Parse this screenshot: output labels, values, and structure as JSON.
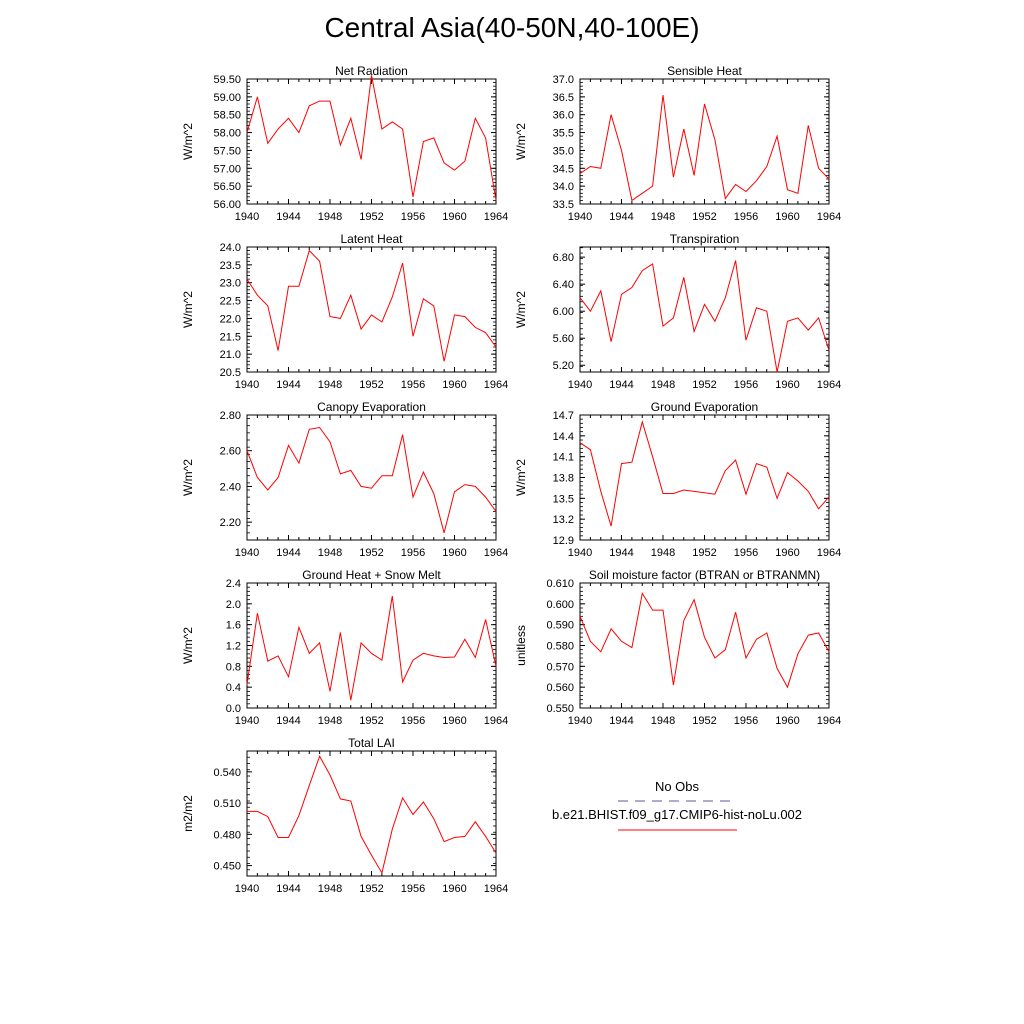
{
  "title": "Central Asia(40-50N,40-100E)",
  "colors": {
    "series": "#ff0000",
    "obs": "#5a5aa0",
    "axis": "#000000"
  },
  "legend": {
    "obs_label": "No Obs",
    "case_label": "b.e21.BHIST.f09_g17.CMIP6-hist-noLu.002"
  },
  "chart_data": [
    {
      "type": "line",
      "title": "Net Radiation",
      "xlabel": "",
      "ylabel": "W/m^2",
      "xlim": [
        1940,
        1964
      ],
      "ylim": [
        56.0,
        59.5
      ],
      "xticks": [
        "1940",
        "1944",
        "1948",
        "1952",
        "1956",
        "1960",
        "1964"
      ],
      "yticks": [
        "56.00",
        "56.50",
        "57.00",
        "57.50",
        "58.00",
        "58.50",
        "59.00",
        "59.50"
      ],
      "x": [
        1940,
        1941,
        1942,
        1943,
        1944,
        1945,
        1946,
        1947,
        1948,
        1949,
        1950,
        1951,
        1952,
        1953,
        1954,
        1955,
        1956,
        1957,
        1958,
        1959,
        1960,
        1961,
        1962,
        1963,
        1964
      ],
      "series": [
        {
          "values": [
            58.0,
            59.0,
            57.7,
            58.1,
            58.4,
            58.0,
            58.75,
            58.88,
            58.88,
            57.65,
            58.4,
            57.25,
            59.6,
            58.1,
            58.3,
            58.1,
            56.2,
            57.75,
            57.85,
            57.15,
            56.95,
            57.2,
            58.4,
            57.85,
            56.1
          ]
        }
      ]
    },
    {
      "type": "line",
      "title": "Sensible Heat",
      "xlabel": "",
      "ylabel": "W/m^2",
      "xlim": [
        1940,
        1964
      ],
      "ylim": [
        33.5,
        37.0
      ],
      "xticks": [
        "1940",
        "1944",
        "1948",
        "1952",
        "1956",
        "1960",
        "1964"
      ],
      "yticks": [
        "33.5",
        "34.0",
        "34.5",
        "35.0",
        "35.5",
        "36.0",
        "36.5",
        "37.0"
      ],
      "x": [
        1940,
        1941,
        1942,
        1943,
        1944,
        1945,
        1946,
        1947,
        1948,
        1949,
        1950,
        1951,
        1952,
        1953,
        1954,
        1955,
        1956,
        1957,
        1958,
        1959,
        1960,
        1961,
        1962,
        1963,
        1964
      ],
      "series": [
        {
          "values": [
            34.35,
            34.55,
            34.5,
            36.0,
            35.0,
            33.6,
            33.8,
            34.0,
            36.55,
            34.25,
            35.6,
            34.3,
            36.3,
            35.3,
            33.65,
            34.05,
            33.85,
            34.15,
            34.55,
            35.4,
            33.9,
            33.8,
            35.7,
            34.5,
            34.2
          ]
        }
      ]
    },
    {
      "type": "line",
      "title": "Latent Heat",
      "xlabel": "",
      "ylabel": "W/m^2",
      "xlim": [
        1940,
        1964
      ],
      "ylim": [
        20.5,
        24.0
      ],
      "xticks": [
        "1940",
        "1944",
        "1948",
        "1952",
        "1956",
        "1960",
        "1964"
      ],
      "yticks": [
        "20.5",
        "21.0",
        "21.5",
        "22.0",
        "22.5",
        "23.0",
        "23.5",
        "24.0"
      ],
      "x": [
        1940,
        1941,
        1942,
        1943,
        1944,
        1945,
        1946,
        1947,
        1948,
        1949,
        1950,
        1951,
        1952,
        1953,
        1954,
        1955,
        1956,
        1957,
        1958,
        1959,
        1960,
        1961,
        1962,
        1963,
        1964
      ],
      "series": [
        {
          "values": [
            23.1,
            22.65,
            22.35,
            21.1,
            22.9,
            22.9,
            23.9,
            23.6,
            22.05,
            22.0,
            22.65,
            21.7,
            22.1,
            21.9,
            22.6,
            23.55,
            21.5,
            22.55,
            22.35,
            20.8,
            22.1,
            22.05,
            21.75,
            21.6,
            21.2
          ]
        }
      ]
    },
    {
      "type": "line",
      "title": "Transpiration",
      "xlabel": "",
      "ylabel": "W/m^2",
      "xlim": [
        1940,
        1964
      ],
      "ylim": [
        5.1,
        6.95
      ],
      "xticks": [
        "1940",
        "1944",
        "1948",
        "1952",
        "1956",
        "1960",
        "1964"
      ],
      "yticks": [
        "5.20",
        "5.60",
        "6.00",
        "6.40",
        "6.80"
      ],
      "x": [
        1940,
        1941,
        1942,
        1943,
        1944,
        1945,
        1946,
        1947,
        1948,
        1949,
        1950,
        1951,
        1952,
        1953,
        1954,
        1955,
        1956,
        1957,
        1958,
        1959,
        1960,
        1961,
        1962,
        1963,
        1964
      ],
      "series": [
        {
          "values": [
            6.2,
            6.0,
            6.3,
            5.55,
            6.25,
            6.35,
            6.6,
            6.7,
            5.78,
            5.9,
            6.5,
            5.7,
            6.1,
            5.85,
            6.2,
            6.75,
            5.57,
            6.05,
            6.0,
            5.1,
            5.85,
            5.9,
            5.72,
            5.9,
            5.42
          ]
        }
      ]
    },
    {
      "type": "line",
      "title": "Canopy Evaporation",
      "xlabel": "",
      "ylabel": "W/m^2",
      "xlim": [
        1940,
        1964
      ],
      "ylim": [
        2.1,
        2.8
      ],
      "xticks": [
        "1940",
        "1944",
        "1948",
        "1952",
        "1956",
        "1960",
        "1964"
      ],
      "yticks": [
        "2.20",
        "2.40",
        "2.60",
        "2.80"
      ],
      "x": [
        1940,
        1941,
        1942,
        1943,
        1944,
        1945,
        1946,
        1947,
        1948,
        1949,
        1950,
        1951,
        1952,
        1953,
        1954,
        1955,
        1956,
        1957,
        1958,
        1959,
        1960,
        1961,
        1962,
        1963,
        1964
      ],
      "series": [
        {
          "values": [
            2.6,
            2.45,
            2.38,
            2.45,
            2.63,
            2.53,
            2.72,
            2.73,
            2.65,
            2.47,
            2.49,
            2.4,
            2.39,
            2.46,
            2.46,
            2.69,
            2.34,
            2.48,
            2.36,
            2.14,
            2.37,
            2.41,
            2.4,
            2.34,
            2.26
          ]
        }
      ]
    },
    {
      "type": "line",
      "title": "Ground Evaporation",
      "xlabel": "",
      "ylabel": "W/m^2",
      "xlim": [
        1940,
        1964
      ],
      "ylim": [
        12.9,
        14.7
      ],
      "xticks": [
        "1940",
        "1944",
        "1948",
        "1952",
        "1956",
        "1960",
        "1964"
      ],
      "yticks": [
        "12.9",
        "13.2",
        "13.5",
        "13.8",
        "14.1",
        "14.4",
        "14.7"
      ],
      "x": [
        1940,
        1941,
        1942,
        1943,
        1944,
        1945,
        1946,
        1947,
        1948,
        1949,
        1950,
        1951,
        1952,
        1953,
        1954,
        1955,
        1956,
        1957,
        1958,
        1959,
        1960,
        1961,
        1962,
        1963,
        1964
      ],
      "series": [
        {
          "values": [
            14.3,
            14.2,
            13.6,
            13.1,
            14.0,
            14.02,
            14.6,
            14.1,
            13.57,
            13.57,
            13.62,
            13.6,
            13.58,
            13.56,
            13.9,
            14.05,
            13.56,
            14.0,
            13.95,
            13.5,
            13.87,
            13.75,
            13.6,
            13.35,
            13.52
          ]
        }
      ]
    },
    {
      "type": "line",
      "title": "Ground Heat + Snow Melt",
      "xlabel": "",
      "ylabel": "W/m^2",
      "xlim": [
        1940,
        1964
      ],
      "ylim": [
        0.0,
        2.4
      ],
      "xticks": [
        "1940",
        "1944",
        "1948",
        "1952",
        "1956",
        "1960",
        "1964"
      ],
      "yticks": [
        "0.0",
        "0.4",
        "0.8",
        "1.2",
        "1.6",
        "2.0",
        "2.4"
      ],
      "x": [
        1940,
        1941,
        1942,
        1943,
        1944,
        1945,
        1946,
        1947,
        1948,
        1949,
        1950,
        1951,
        1952,
        1953,
        1954,
        1955,
        1956,
        1957,
        1958,
        1959,
        1960,
        1961,
        1962,
        1963,
        1964
      ],
      "series": [
        {
          "values": [
            0.45,
            1.82,
            0.9,
            1.0,
            0.6,
            1.55,
            1.05,
            1.25,
            0.32,
            1.45,
            0.15,
            1.25,
            1.05,
            0.92,
            2.15,
            0.5,
            0.92,
            1.05,
            1.0,
            0.97,
            0.98,
            1.32,
            0.97,
            1.7,
            0.8
          ]
        }
      ]
    },
    {
      "type": "line",
      "title": "Soil moisture factor (BTRAN or BTRANMN)",
      "xlabel": "",
      "ylabel": "unitless",
      "xlim": [
        1940,
        1964
      ],
      "ylim": [
        0.55,
        0.61
      ],
      "xticks": [
        "1940",
        "1944",
        "1948",
        "1952",
        "1956",
        "1960",
        "1964"
      ],
      "yticks": [
        "0.550",
        "0.560",
        "0.570",
        "0.580",
        "0.590",
        "0.600",
        "0.610"
      ],
      "x": [
        1940,
        1941,
        1942,
        1943,
        1944,
        1945,
        1946,
        1947,
        1948,
        1949,
        1950,
        1951,
        1952,
        1953,
        1954,
        1955,
        1956,
        1957,
        1958,
        1959,
        1960,
        1961,
        1962,
        1963,
        1964
      ],
      "series": [
        {
          "values": [
            0.594,
            0.582,
            0.577,
            0.588,
            0.582,
            0.579,
            0.605,
            0.597,
            0.597,
            0.561,
            0.592,
            0.602,
            0.584,
            0.574,
            0.578,
            0.596,
            0.574,
            0.583,
            0.586,
            0.569,
            0.56,
            0.576,
            0.585,
            0.586,
            0.577
          ]
        }
      ]
    },
    {
      "type": "line",
      "title": "Total LAI",
      "xlabel": "",
      "ylabel": "m2/m2",
      "xlim": [
        1940,
        1964
      ],
      "ylim": [
        0.44,
        0.56
      ],
      "xticks": [
        "1940",
        "1944",
        "1948",
        "1952",
        "1956",
        "1960",
        "1964"
      ],
      "yticks": [
        "0.450",
        "0.480",
        "0.510",
        "0.540"
      ],
      "x": [
        1940,
        1941,
        1942,
        1943,
        1944,
        1945,
        1946,
        1947,
        1948,
        1949,
        1950,
        1951,
        1952,
        1953,
        1954,
        1955,
        1956,
        1957,
        1958,
        1959,
        1960,
        1961,
        1962,
        1963,
        1964
      ],
      "series": [
        {
          "values": [
            0.502,
            0.502,
            0.497,
            0.477,
            0.477,
            0.498,
            0.527,
            0.555,
            0.537,
            0.514,
            0.512,
            0.478,
            0.46,
            0.443,
            0.485,
            0.515,
            0.499,
            0.511,
            0.495,
            0.473,
            0.477,
            0.478,
            0.492,
            0.478,
            0.462
          ]
        }
      ]
    }
  ]
}
